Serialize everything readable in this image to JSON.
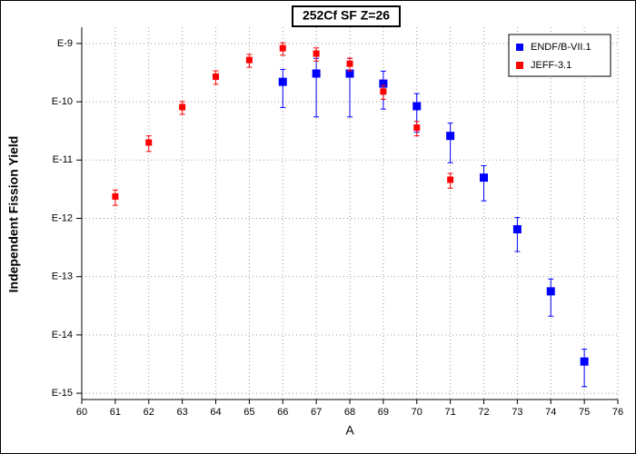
{
  "chart_data": {
    "type": "scatter",
    "title": "252Cf SF Z=26",
    "x_label": "A",
    "y_label": "Independent Fission Yield",
    "log_y": true,
    "grid": true,
    "legend": "top-right",
    "xlim": [
      60,
      76
    ],
    "xticks": [
      60,
      61,
      62,
      63,
      64,
      65,
      66,
      67,
      68,
      69,
      70,
      71,
      72,
      73,
      74,
      75,
      76
    ],
    "ylim": [
      7.8e-16,
      1.9e-09
    ],
    "yticks": [
      {
        "value": 1e-15,
        "label": "E-15"
      },
      {
        "value": 1e-14,
        "label": "E-14"
      },
      {
        "value": 1e-13,
        "label": "E-13"
      },
      {
        "value": 1e-12,
        "label": "E-12"
      },
      {
        "value": 1e-11,
        "label": "E-11"
      },
      {
        "value": 1e-10,
        "label": "E-10"
      },
      {
        "value": 1e-09,
        "label": "E-9"
      }
    ],
    "series": [
      {
        "name": "ENDF/B-VII.1",
        "color": "#0000ff",
        "x": [
          66,
          67,
          68,
          69,
          70,
          71,
          72,
          73,
          74,
          75
        ],
        "values": [
          2.2e-10,
          3.05e-10,
          3.05e-10,
          2.05e-10,
          8.4e-11,
          2.6e-11,
          5e-12,
          6.5e-13,
          5.6e-14,
          3.5e-15
        ],
        "errors": [
          1.4e-10,
          2.5e-10,
          2.5e-10,
          1.3e-10,
          5.4e-11,
          1.7e-11,
          3e-12,
          3.8e-13,
          3.5e-14,
          2.2e-15
        ]
      },
      {
        "name": "JEFF-3.1",
        "color": "#ff0000",
        "x": [
          61,
          62,
          63,
          64,
          65,
          66,
          67,
          68,
          69,
          70,
          71
        ],
        "values": [
          2.37e-12,
          2e-11,
          8.1e-11,
          2.7e-10,
          5.2e-10,
          8.3e-10,
          6.7e-10,
          4.5e-10,
          1.5e-10,
          3.6e-11,
          4.6e-12
        ],
        "errors": [
          7e-13,
          6e-12,
          2e-11,
          7e-11,
          1.3e-10,
          2e-10,
          1.7e-10,
          1.1e-10,
          4e-11,
          1e-11,
          1.3e-12
        ]
      }
    ]
  }
}
